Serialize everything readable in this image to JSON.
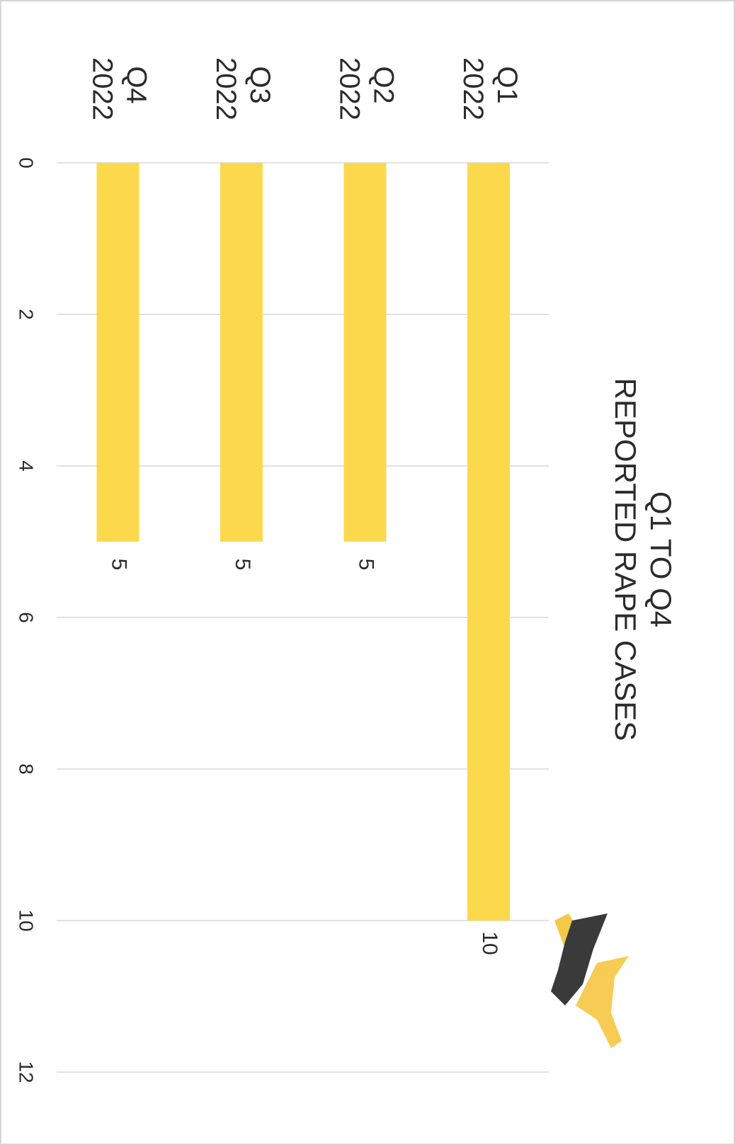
{
  "chart_data": {
    "type": "bar",
    "orientation": "horizontal",
    "title": [
      "Q1 TO Q4",
      "REPORTED RAPE CASES"
    ],
    "categories": [
      "Q1 2022",
      "Q2 2022",
      "Q3 2022",
      "Q4 2022"
    ],
    "values": [
      10,
      5,
      5,
      5
    ],
    "color": "#fcd94c",
    "xlim": [
      0,
      12
    ],
    "xticks": [
      0,
      2,
      4,
      6,
      8,
      10,
      12
    ],
    "grid": true
  }
}
